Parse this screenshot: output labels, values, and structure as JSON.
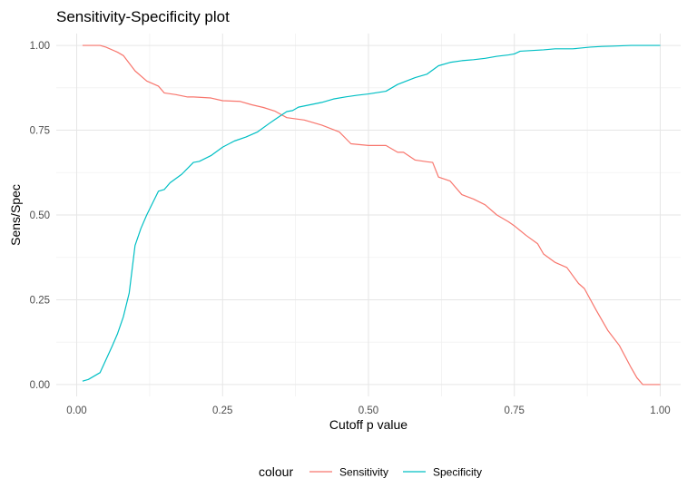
{
  "chart_data": {
    "type": "line",
    "title": "Sensitivity-Specificity plot",
    "xlabel": "Cutoff p value",
    "ylabel": "Sens/Spec",
    "xlim": [
      -0.035,
      1.035
    ],
    "ylim": [
      -0.035,
      1.035
    ],
    "xticks": [
      0.0,
      0.25,
      0.5,
      0.75,
      1.0
    ],
    "xtick_labels": [
      "0.00",
      "0.25",
      "0.50",
      "0.75",
      "1.00"
    ],
    "yticks": [
      0.0,
      0.25,
      0.5,
      0.75,
      1.0
    ],
    "ytick_labels": [
      "0.00",
      "0.25",
      "0.50",
      "0.75",
      "1.00"
    ],
    "grid": true,
    "legend": {
      "title": "colour",
      "position": "bottom"
    },
    "series": [
      {
        "name": "Sensitivity",
        "color": "#F8766D",
        "x": [
          0.01,
          0.04,
          0.05,
          0.07,
          0.08,
          0.1,
          0.12,
          0.14,
          0.15,
          0.17,
          0.19,
          0.2,
          0.23,
          0.25,
          0.28,
          0.3,
          0.32,
          0.34,
          0.36,
          0.39,
          0.42,
          0.45,
          0.47,
          0.5,
          0.53,
          0.55,
          0.56,
          0.58,
          0.6,
          0.61,
          0.62,
          0.64,
          0.66,
          0.68,
          0.7,
          0.72,
          0.74,
          0.75,
          0.77,
          0.79,
          0.8,
          0.82,
          0.84,
          0.86,
          0.87,
          0.89,
          0.91,
          0.93,
          0.95,
          0.96,
          0.97,
          0.98,
          1.0
        ],
        "y": [
          1.0,
          1.0,
          0.995,
          0.98,
          0.97,
          0.925,
          0.895,
          0.88,
          0.86,
          0.855,
          0.848,
          0.848,
          0.845,
          0.837,
          0.835,
          0.825,
          0.817,
          0.806,
          0.787,
          0.78,
          0.765,
          0.745,
          0.71,
          0.705,
          0.705,
          0.685,
          0.685,
          0.662,
          0.657,
          0.655,
          0.612,
          0.6,
          0.56,
          0.547,
          0.53,
          0.5,
          0.48,
          0.468,
          0.44,
          0.415,
          0.385,
          0.36,
          0.345,
          0.298,
          0.283,
          0.22,
          0.16,
          0.115,
          0.05,
          0.02,
          0.0,
          0.0,
          0.0
        ]
      },
      {
        "name": "Specificity",
        "color": "#00BFC4",
        "x": [
          0.01,
          0.02,
          0.04,
          0.06,
          0.07,
          0.08,
          0.09,
          0.1,
          0.11,
          0.12,
          0.14,
          0.15,
          0.16,
          0.18,
          0.2,
          0.21,
          0.23,
          0.25,
          0.27,
          0.29,
          0.31,
          0.33,
          0.34,
          0.36,
          0.37,
          0.38,
          0.4,
          0.42,
          0.44,
          0.46,
          0.48,
          0.5,
          0.53,
          0.55,
          0.58,
          0.6,
          0.62,
          0.64,
          0.66,
          0.68,
          0.7,
          0.72,
          0.74,
          0.75,
          0.76,
          0.78,
          0.8,
          0.82,
          0.85,
          0.88,
          0.9,
          0.92,
          0.95,
          1.0
        ],
        "y": [
          0.01,
          0.015,
          0.035,
          0.11,
          0.15,
          0.2,
          0.27,
          0.41,
          0.46,
          0.5,
          0.57,
          0.575,
          0.595,
          0.62,
          0.655,
          0.658,
          0.675,
          0.7,
          0.718,
          0.73,
          0.745,
          0.77,
          0.782,
          0.805,
          0.808,
          0.818,
          0.825,
          0.832,
          0.842,
          0.848,
          0.853,
          0.857,
          0.865,
          0.885,
          0.905,
          0.915,
          0.94,
          0.95,
          0.955,
          0.958,
          0.962,
          0.968,
          0.972,
          0.975,
          0.983,
          0.985,
          0.987,
          0.99,
          0.99,
          0.995,
          0.997,
          0.998,
          1.0,
          1.0
        ]
      }
    ]
  }
}
